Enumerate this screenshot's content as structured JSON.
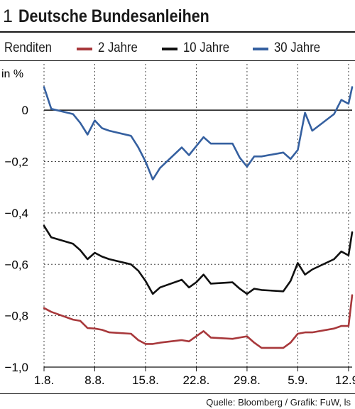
{
  "header": {
    "number": "1",
    "title": "Deutsche Bundesanleihen"
  },
  "legend": {
    "caption": "Renditen",
    "items": [
      {
        "label": "2 Jahre",
        "color": "#a8383b"
      },
      {
        "label": "10 Jahre",
        "color": "#111111"
      },
      {
        "label": "30 Jahre",
        "color": "#3560a0"
      }
    ]
  },
  "source": "Quelle: Bloomberg / Grafik: FuW, ls",
  "chart_data": {
    "type": "line",
    "unit": "in %",
    "ylim": [
      -1.0,
      0.18
    ],
    "yticks": [
      0,
      -0.2,
      -0.4,
      -0.6,
      -0.8,
      -1.0
    ],
    "ytick_labels": [
      "0",
      "−0,2",
      "−0,4",
      "−0,6",
      "−0,8",
      "−1,0"
    ],
    "xlim": [
      1,
      43.5
    ],
    "xticks": [
      1,
      8,
      15,
      22,
      29,
      36,
      43
    ],
    "xtick_labels": [
      "1.8.",
      "8.8.",
      "15.8.",
      "22.8.",
      "29.8.",
      "5.9.",
      "12.9."
    ],
    "grid": "dotted",
    "x": [
      1,
      2,
      5,
      6,
      7,
      8,
      9,
      10,
      13,
      14,
      15,
      16,
      17,
      20,
      21,
      22,
      23,
      24,
      27,
      28,
      29,
      30,
      31,
      34,
      35,
      36,
      37,
      38,
      41,
      42,
      43,
      44
    ],
    "series": [
      {
        "name": "2 Jahre",
        "color": "#a8383b",
        "values": [
          -0.77,
          -0.785,
          -0.815,
          -0.82,
          -0.848,
          -0.85,
          -0.855,
          -0.865,
          -0.87,
          -0.895,
          -0.91,
          -0.91,
          -0.905,
          -0.895,
          -0.9,
          -0.88,
          -0.86,
          -0.885,
          -0.89,
          -0.885,
          -0.88,
          -0.905,
          -0.925,
          -0.925,
          -0.905,
          -0.87,
          -0.865,
          -0.865,
          -0.85,
          -0.84,
          -0.84,
          -0.72
        ]
      },
      {
        "name": "10 Jahre",
        "color": "#111111",
        "values": [
          -0.45,
          -0.495,
          -0.52,
          -0.545,
          -0.58,
          -0.555,
          -0.57,
          -0.58,
          -0.6,
          -0.625,
          -0.665,
          -0.715,
          -0.69,
          -0.66,
          -0.69,
          -0.67,
          -0.64,
          -0.675,
          -0.67,
          -0.695,
          -0.715,
          -0.695,
          -0.7,
          -0.705,
          -0.665,
          -0.595,
          -0.64,
          -0.62,
          -0.58,
          -0.55,
          -0.565,
          -0.475
        ]
      },
      {
        "name": "30 Jahre",
        "color": "#3560a0",
        "values": [
          0.09,
          0.005,
          -0.015,
          -0.05,
          -0.095,
          -0.04,
          -0.07,
          -0.08,
          -0.1,
          -0.145,
          -0.2,
          -0.27,
          -0.225,
          -0.145,
          -0.175,
          -0.14,
          -0.105,
          -0.13,
          -0.13,
          -0.185,
          -0.22,
          -0.18,
          -0.18,
          -0.165,
          -0.19,
          -0.155,
          -0.01,
          -0.08,
          -0.015,
          0.04,
          0.025,
          0.09
        ]
      }
    ]
  }
}
